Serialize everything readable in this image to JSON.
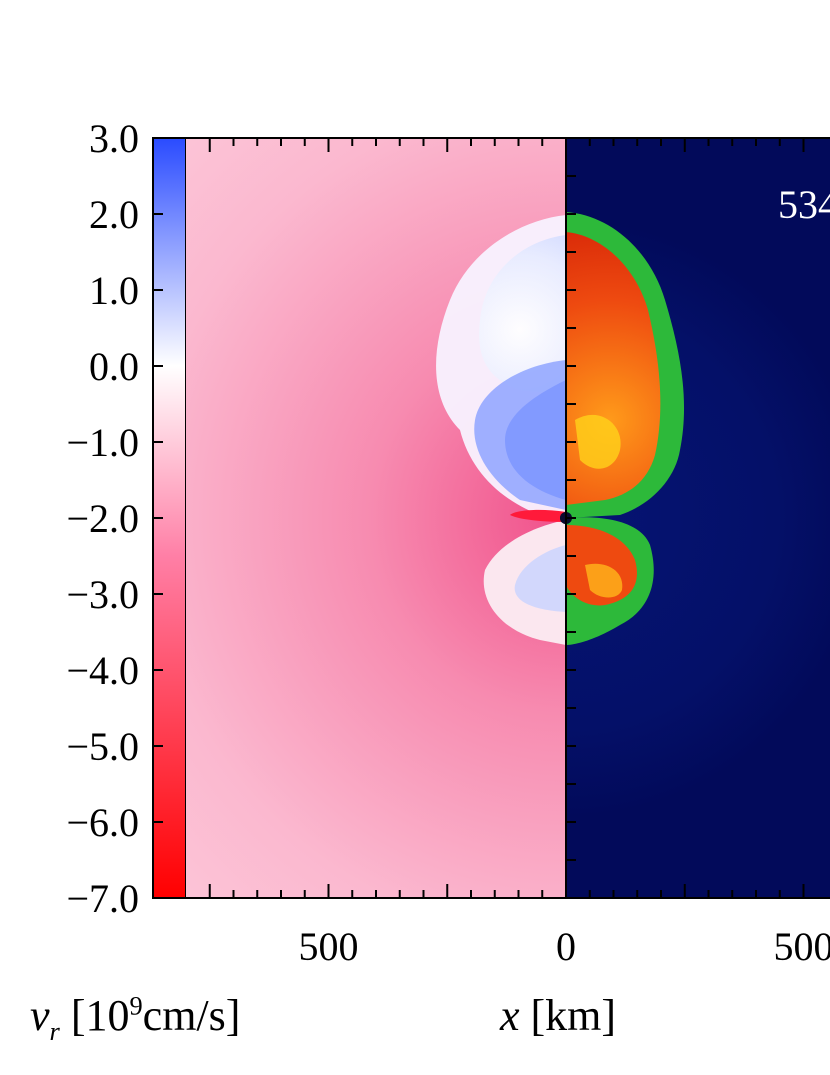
{
  "chart_data": {
    "type": "heatmap",
    "colorbar": {
      "variable": "v",
      "subscript": "r",
      "units_prefix": "[10",
      "units_exp": "9",
      "units_suffix": "cm/s]",
      "ticks": [
        "3.0",
        "2.0",
        "1.0",
        "0.0",
        "−1.0",
        "−2.0",
        "−3.0",
        "−4.0",
        "−5.0",
        "−6.0",
        "−7.0"
      ],
      "range": [
        -7.0,
        3.0
      ],
      "colors": {
        "high": "#2a4bff",
        "mid": "#ffffff",
        "low": "#ff0000"
      }
    },
    "x_axis": {
      "label_var": "x",
      "label_units": "[km]",
      "ticks": [
        "500",
        "0",
        "500"
      ],
      "range": [
        -800,
        550
      ]
    },
    "left_panel_quantity": "radial velocity",
    "right_panel_background": "#020a5a",
    "time_label": "534"
  }
}
